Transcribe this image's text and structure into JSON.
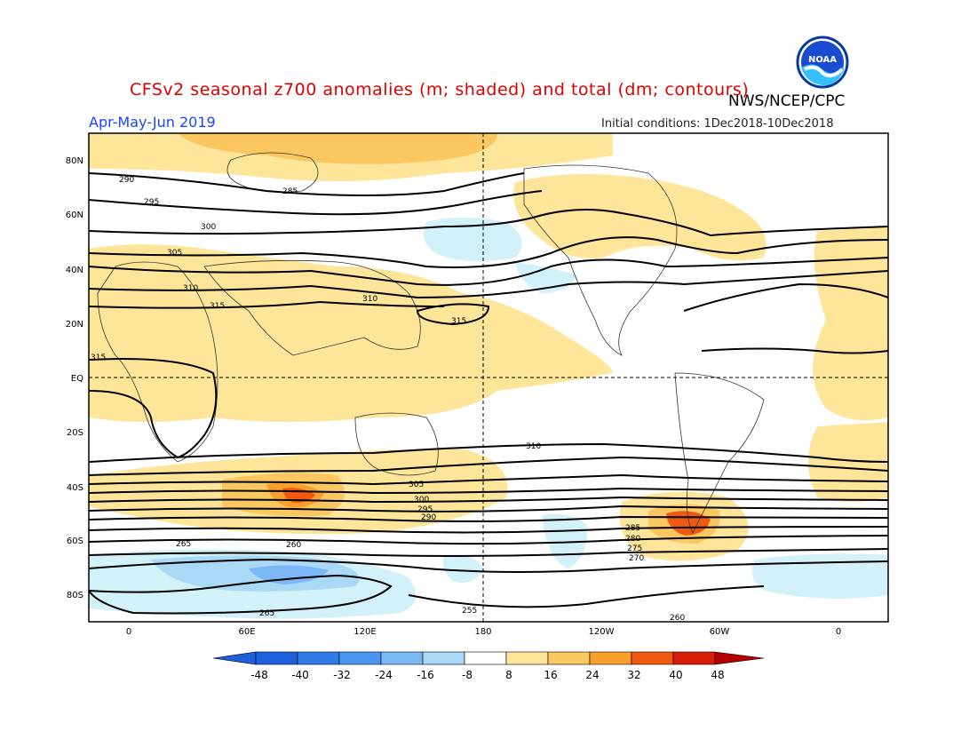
{
  "header": {
    "title": "CFSv2 seasonal z700 anomalies (m; shaded) and total (dm; contours)",
    "agency": "NWS/NCEP/CPC",
    "season": "Apr-May-Jun 2019",
    "initial_conditions": "Initial conditions: 1Dec2018-10Dec2018",
    "logo_text": "NOAA"
  },
  "map": {
    "lat_labels": [
      "80N",
      "60N",
      "40N",
      "20N",
      "EQ",
      "20S",
      "40S",
      "60S",
      "80S"
    ],
    "lon_labels": [
      "0",
      "60E",
      "120E",
      "180",
      "120W",
      "60W",
      "0"
    ],
    "contour_labels": [
      "290",
      "285",
      "295",
      "300",
      "305",
      "310",
      "315",
      "310",
      "315",
      "315",
      "310",
      "305",
      "300",
      "295",
      "290",
      "285",
      "280",
      "275",
      "270",
      "265",
      "260",
      "255",
      "260",
      "265"
    ]
  },
  "colorbar": {
    "labels": [
      "-48",
      "-40",
      "-32",
      "-24",
      "-16",
      "-8",
      "8",
      "16",
      "24",
      "32",
      "40",
      "48"
    ],
    "colors": [
      "#1e5fdc",
      "#2f7ae6",
      "#4b96f0",
      "#7bb6f5",
      "#a9d9f5",
      "#d3f1f8",
      "#ffffff",
      "#fde59a",
      "#fbc760",
      "#f7a12c",
      "#f05a10",
      "#d91d08",
      "#b40000"
    ]
  }
}
